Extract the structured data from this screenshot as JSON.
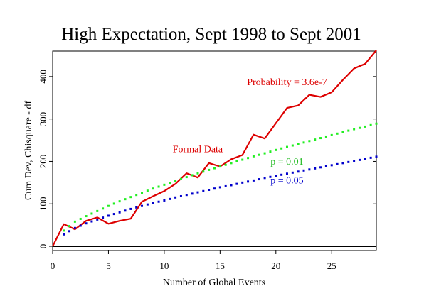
{
  "chart_data": {
    "type": "line",
    "title": "High Expectation, Sept 1998 to Sept 2001",
    "xlabel": "Number of Global Events",
    "ylabel": "Cum Dev, Chisquare - df",
    "xlim": [
      0,
      29
    ],
    "ylim": [
      -10,
      460
    ],
    "x_ticks": [
      0,
      5,
      10,
      15,
      20,
      25
    ],
    "y_ticks": [
      0,
      100,
      200,
      300,
      400
    ],
    "grid": false,
    "series": [
      {
        "name": "Formal Data",
        "style": "solid",
        "color": "#dd0000",
        "x": [
          0,
          1,
          2,
          3,
          4,
          5,
          6,
          7,
          8,
          9,
          10,
          11,
          12,
          13,
          14,
          15,
          16,
          17,
          18,
          19,
          20,
          21,
          22,
          23,
          24,
          25,
          26,
          27,
          28,
          29
        ],
        "y": [
          0,
          52,
          40,
          60,
          68,
          53,
          60,
          65,
          105,
          118,
          130,
          147,
          172,
          162,
          196,
          188,
          205,
          215,
          263,
          254,
          290,
          326,
          332,
          357,
          352,
          363,
          392,
          419,
          430,
          462
        ]
      },
      {
        "name": "p = 0.01",
        "style": "dotted",
        "color": "#22ee22",
        "x": [
          1,
          2,
          3,
          4,
          5,
          6,
          7,
          8,
          9,
          10,
          11,
          12,
          13,
          14,
          15,
          16,
          17,
          18,
          19,
          20,
          21,
          22,
          23,
          24,
          25,
          26,
          27,
          28,
          29
        ],
        "y": [
          37,
          58,
          71,
          83,
          95,
          106,
          116,
          126,
          136,
          145,
          154,
          163,
          172,
          180,
          188,
          196,
          204,
          212,
          219,
          227,
          234,
          241,
          248,
          255,
          262,
          269,
          276,
          282,
          289
        ]
      },
      {
        "name": "p = 0.05",
        "style": "dotted",
        "color": "#0000cc",
        "x": [
          1,
          2,
          3,
          4,
          5,
          6,
          7,
          8,
          9,
          10,
          11,
          12,
          13,
          14,
          15,
          16,
          17,
          18,
          19,
          20,
          21,
          22,
          23,
          24,
          25,
          26,
          27,
          28,
          29
        ],
        "y": [
          28,
          43,
          54,
          63,
          72,
          80,
          88,
          95,
          102,
          108,
          115,
          121,
          127,
          133,
          139,
          144,
          150,
          155,
          161,
          166,
          171,
          176,
          181,
          186,
          191,
          196,
          201,
          206,
          211
        ]
      }
    ],
    "annotations": [
      {
        "text": "Probability = 3.6e-7",
        "x": 21,
        "y": 380,
        "color": "#dd0000"
      },
      {
        "text": "Formal Data",
        "x": 13,
        "y": 222,
        "color": "#dd0000"
      },
      {
        "text": "p = 0.01",
        "x": 21,
        "y": 192,
        "color": "#22bb22"
      },
      {
        "text": "p = 0.05",
        "x": 21,
        "y": 148,
        "color": "#0000cc"
      }
    ]
  }
}
